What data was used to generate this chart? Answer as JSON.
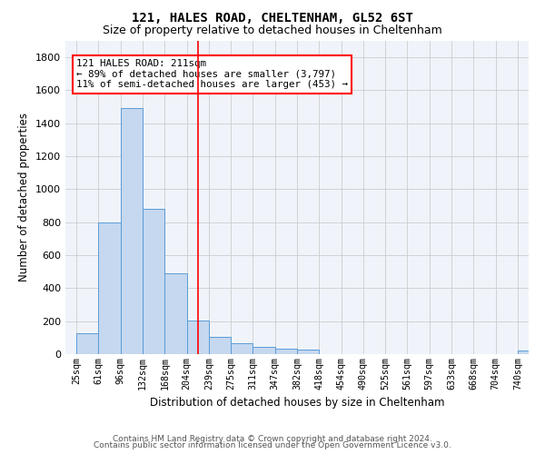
{
  "title1": "121, HALES ROAD, CHELTENHAM, GL52 6ST",
  "title2": "Size of property relative to detached houses in Cheltenham",
  "xlabel": "Distribution of detached houses by size in Cheltenham",
  "ylabel": "Number of detached properties",
  "categories": [
    "25sqm",
    "61sqm",
    "96sqm",
    "132sqm",
    "168sqm",
    "204sqm",
    "239sqm",
    "275sqm",
    "311sqm",
    "347sqm",
    "382sqm",
    "418sqm",
    "454sqm",
    "490sqm",
    "525sqm",
    "561sqm",
    "597sqm",
    "633sqm",
    "668sqm",
    "704sqm",
    "740sqm"
  ],
  "values": [
    125,
    800,
    1490,
    880,
    490,
    205,
    105,
    65,
    42,
    35,
    28,
    0,
    0,
    0,
    0,
    0,
    0,
    0,
    0,
    0,
    22
  ],
  "bar_color": "#c5d8f0",
  "bar_edge_color": "#5b9bd5",
  "vline_position": 5.5,
  "annotation_text": "121 HALES ROAD: 211sqm\n← 89% of detached houses are smaller (3,797)\n11% of semi-detached houses are larger (453) →",
  "annotation_box_color": "white",
  "annotation_box_edge": "red",
  "vline_color": "red",
  "grid_color": "#cccccc",
  "footer1": "Contains HM Land Registry data © Crown copyright and database right 2024.",
  "footer2": "Contains public sector information licensed under the Open Government Licence v3.0.",
  "ylim": [
    0,
    1900
  ],
  "yticks": [
    0,
    200,
    400,
    600,
    800,
    1000,
    1200,
    1400,
    1600,
    1800
  ],
  "bg_color": "#f0f4fa"
}
